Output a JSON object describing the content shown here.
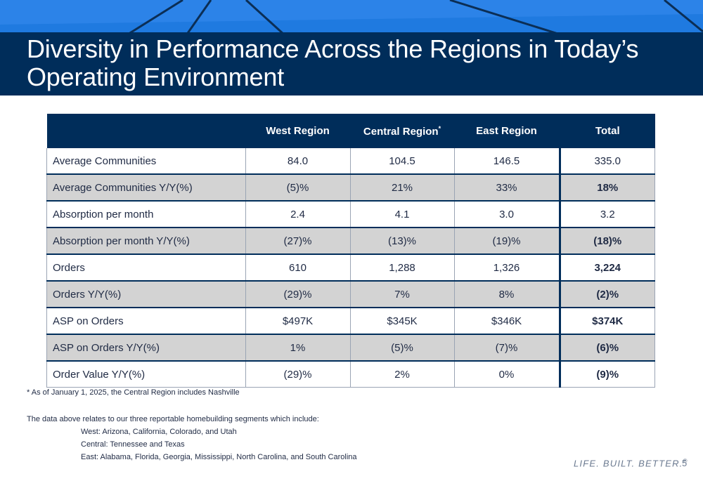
{
  "slide": {
    "title_line1": "Diversity in Performance Across the Regions in Today’s",
    "title_line2": "Operating Environment",
    "tagline": "LIFE. BUILT. BETTER.",
    "tagline_mark": "®",
    "page_number": "5"
  },
  "table": {
    "headers": [
      "",
      "West Region",
      "Central Region",
      "East Region",
      "Total"
    ],
    "central_header_mark": "*",
    "rows": [
      {
        "label": "Average Communities",
        "west": "84.0",
        "central": "104.5",
        "east": "146.5",
        "total": "335.0"
      },
      {
        "label": "Average Communities Y/Y(%)",
        "west": "(5)%",
        "central": "21%",
        "east": "33%",
        "total": "18%"
      },
      {
        "label": "Absorption per month",
        "west": "2.4",
        "central": "4.1",
        "east": "3.0",
        "total": "3.2"
      },
      {
        "label": "Absorption per month Y/Y(%)",
        "west": "(27)%",
        "central": "(13)%",
        "east": "(19)%",
        "total": "(18)%"
      },
      {
        "label": "Orders",
        "west": "610",
        "central": "1,288",
        "east": "1,326",
        "total": "3,224"
      },
      {
        "label": "Orders Y/Y(%)",
        "west": "(29)%",
        "central": "7%",
        "east": "8%",
        "total": "(2)%"
      },
      {
        "label": "ASP on Orders",
        "west": "$497K",
        "central": "$345K",
        "east": "$346K",
        "total": "$374K"
      },
      {
        "label": "ASP on Orders Y/Y(%)",
        "west": "1%",
        "central": "(5)%",
        "east": "(7)%",
        "total": "(6)%"
      },
      {
        "label": "Order Value Y/Y(%)",
        "west": "(29)%",
        "central": "2%",
        "east": "0%",
        "total": "(9)%"
      }
    ]
  },
  "footnotes": {
    "central_note": "* As of January 1, 2025, the Central Region includes Nashville",
    "segments_intro": "The data above relates to our three reportable homebuilding segments which include:",
    "west": "West: Arizona, California, Colorado, and Utah",
    "central": "Central: Tennessee and Texas",
    "east": "East: Alabama, Florida, Georgia, Mississippi, North Carolina, and South Carolina"
  }
}
